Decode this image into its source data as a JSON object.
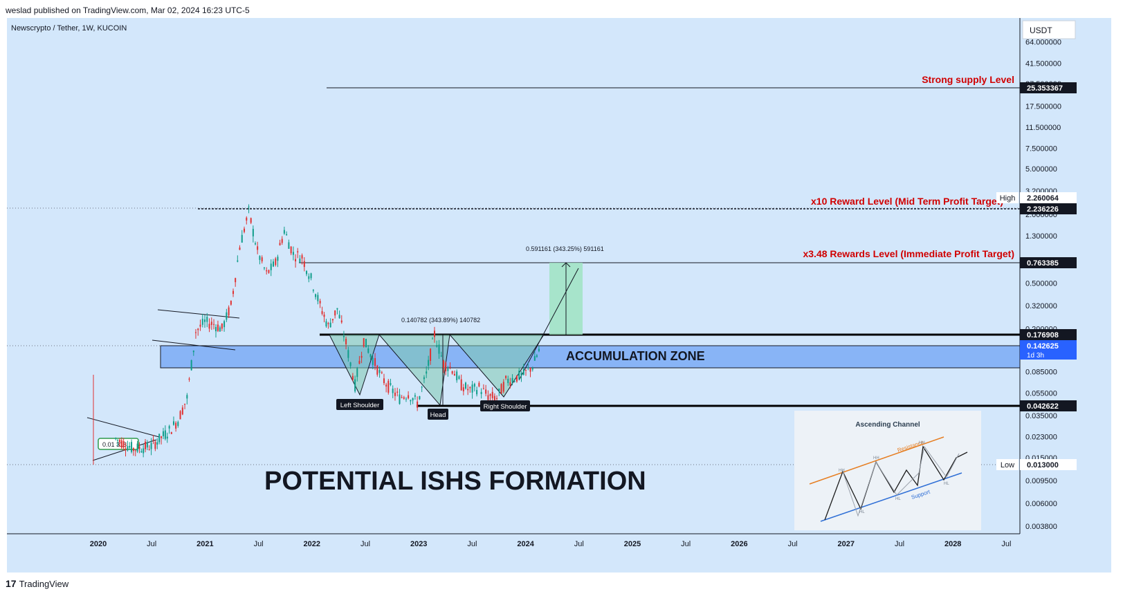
{
  "header": {
    "published": "weslad published on TradingView.com, Mar 02, 2024 16:23 UTC-5"
  },
  "symbol": "Newscrypto / Tether, 1W, KUCOIN",
  "currency_button": "USDT",
  "footer": {
    "brand": "TradingView",
    "mark": "17"
  },
  "colors": {
    "background": "#d3e7fb",
    "up": "#0f9d8a",
    "down": "#e03131",
    "accent": "#d00000",
    "zone": "#7aaaf5",
    "target": "#9fe3c2"
  },
  "chart_data": {
    "type": "candlestick",
    "title": "",
    "yscale": "log",
    "y_ticks": [
      "64.000000",
      "41.500000",
      "27.500000",
      "17.500000",
      "11.500000",
      "7.500000",
      "5.000000",
      "3.200000",
      "2.000000",
      "1.300000",
      "0.500000",
      "0.320000",
      "0.200000",
      "0.085000",
      "0.055000",
      "0.035000",
      "0.023000",
      "0.015000",
      "0.009500",
      "0.006000",
      "0.003800"
    ],
    "x_ticks": [
      "2020",
      "Jul",
      "2021",
      "Jul",
      "2022",
      "Jul",
      "2023",
      "Jul",
      "2024",
      "Jul",
      "2025",
      "Jul",
      "2026",
      "Jul",
      "2027",
      "Jul",
      "2028",
      "Jul"
    ],
    "price_labels": [
      {
        "value": "25.353367",
        "style": "dark"
      },
      {
        "value": "2.260064",
        "tag": "High",
        "style": "light"
      },
      {
        "value": "2.236226",
        "style": "dark"
      },
      {
        "value": "0.763385",
        "style": "dark"
      },
      {
        "value": "0.176908",
        "style": "dark"
      },
      {
        "value": "0.142625",
        "sub": "1d 3h",
        "style": "blue"
      },
      {
        "value": "0.042622",
        "style": "dark"
      },
      {
        "value": "0.013000",
        "tag": "Low",
        "style": "light"
      }
    ],
    "levels": [
      {
        "label": "Strong supply Level",
        "price": 25.353367
      },
      {
        "label": "x10 Reward Level (Mid Term Profit Target)",
        "price": 2.236226
      },
      {
        "label": "x3.48 Rewards Level (Immediate Profit Target)",
        "price": 0.763385
      },
      {
        "label": "",
        "price": 0.176908
      },
      {
        "label": "",
        "price": 0.042622
      }
    ],
    "zone_label": "ACCUMULATION ZONE",
    "pattern_labels": [
      "Left Shoulder",
      "Head",
      "Right Shoulder"
    ],
    "measures": [
      "0.140782 (343.89%) 140782",
      "0.591161 (343.25%) 591161"
    ],
    "small_label": "0.01 318",
    "big_title": "POTENTIAL ISHS FORMATION",
    "inset": {
      "title": "Ascending Channel",
      "resistance": "Resistance",
      "support": "Support",
      "hh": "HH",
      "hl": "HL"
    },
    "series": [
      {
        "date": "2020-03",
        "price": 0.022
      },
      {
        "date": "2020-05",
        "price": 0.018
      },
      {
        "date": "2020-07",
        "price": 0.019
      },
      {
        "date": "2020-09",
        "price": 0.026
      },
      {
        "date": "2020-10",
        "price": 0.032
      },
      {
        "date": "2020-11",
        "price": 0.05
      },
      {
        "date": "2020-12",
        "price": 0.19
      },
      {
        "date": "2021-01",
        "price": 0.23
      },
      {
        "date": "2021-02",
        "price": 0.22
      },
      {
        "date": "2021-03",
        "price": 0.2
      },
      {
        "date": "2021-04",
        "price": 0.32
      },
      {
        "date": "2021-05",
        "price": 1.05
      },
      {
        "date": "2021-06",
        "price": 2.1
      },
      {
        "date": "2021-07",
        "price": 0.95
      },
      {
        "date": "2021-08",
        "price": 0.6
      },
      {
        "date": "2021-09",
        "price": 0.75
      },
      {
        "date": "2021-10",
        "price": 1.45
      },
      {
        "date": "2021-11",
        "price": 0.9
      },
      {
        "date": "2021-12",
        "price": 0.85
      },
      {
        "date": "2022-01",
        "price": 0.55
      },
      {
        "date": "2022-02",
        "price": 0.32
      },
      {
        "date": "2022-03",
        "price": 0.21
      },
      {
        "date": "2022-04",
        "price": 0.3
      },
      {
        "date": "2022-05",
        "price": 0.15
      },
      {
        "date": "2022-06",
        "price": 0.065
      },
      {
        "date": "2022-07",
        "price": 0.16
      },
      {
        "date": "2022-08",
        "price": 0.11
      },
      {
        "date": "2022-09",
        "price": 0.075
      },
      {
        "date": "2022-10",
        "price": 0.06
      },
      {
        "date": "2022-11",
        "price": 0.05
      },
      {
        "date": "2022-12",
        "price": 0.055
      },
      {
        "date": "2023-01",
        "price": 0.045
      },
      {
        "date": "2023-02",
        "price": 0.08
      },
      {
        "date": "2023-03",
        "price": 0.18
      },
      {
        "date": "2023-04",
        "price": 0.1
      },
      {
        "date": "2023-05",
        "price": 0.09
      },
      {
        "date": "2023-06",
        "price": 0.065
      },
      {
        "date": "2023-07",
        "price": 0.058
      },
      {
        "date": "2023-08",
        "price": 0.062
      },
      {
        "date": "2023-09",
        "price": 0.052
      },
      {
        "date": "2023-10",
        "price": 0.05
      },
      {
        "date": "2023-11",
        "price": 0.07
      },
      {
        "date": "2023-12",
        "price": 0.075
      },
      {
        "date": "2024-01",
        "price": 0.08
      },
      {
        "date": "2024-02",
        "price": 0.095
      },
      {
        "date": "2024-03",
        "price": 0.142625
      }
    ]
  }
}
